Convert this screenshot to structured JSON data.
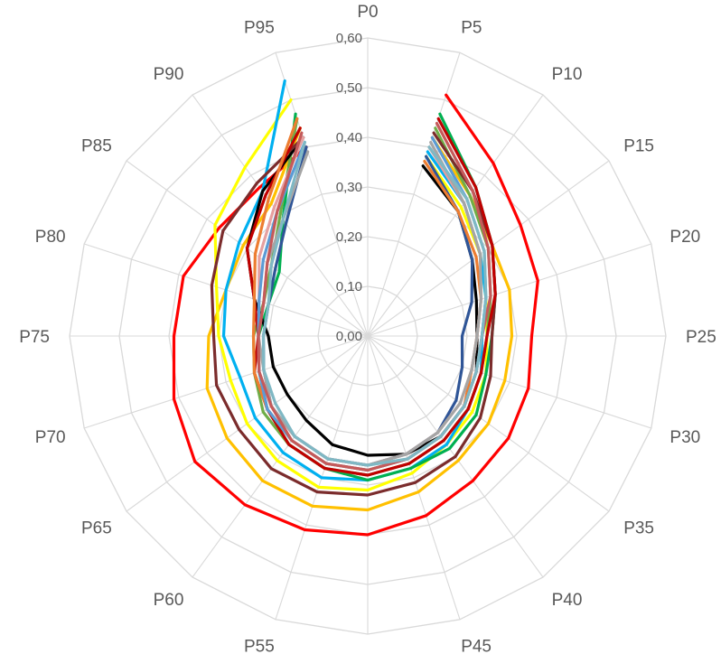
{
  "chart_data": {
    "type": "radar",
    "title": "",
    "categories": [
      "P0",
      "P5",
      "P10",
      "P15",
      "P20",
      "P25",
      "P30",
      "P35",
      "P40",
      "P45",
      "P50",
      "P55",
      "P60",
      "P65",
      "P70",
      "P75",
      "P80",
      "P85",
      "P90",
      "P95"
    ],
    "ylim": [
      0,
      0.6
    ],
    "yticks": [
      "0,00",
      "0,10",
      "0,20",
      "0,30",
      "0,40",
      "0,50",
      "0,60"
    ],
    "yticks_values": [
      0,
      0.1,
      0.2,
      0.3,
      0.4,
      0.5,
      0.6
    ],
    "grid": true,
    "legend": "none",
    "series": [
      {
        "color": "#ff0000",
        "values": [
          null,
          0.51,
          0.43,
          0.38,
          0.36,
          0.33,
          0.34,
          0.35,
          0.36,
          0.38,
          0.4,
          0.41,
          0.42,
          0.43,
          0.41,
          0.39,
          0.39,
          0.37,
          0.37,
          0.4
        ]
      },
      {
        "color": "#ffc000",
        "values": [
          null,
          0.42,
          0.35,
          0.31,
          0.3,
          0.29,
          0.29,
          0.3,
          0.31,
          0.33,
          0.35,
          0.36,
          0.36,
          0.35,
          0.34,
          0.32,
          0.3,
          0.31,
          0.33,
          0.44
        ]
      },
      {
        "color": "#ffff00",
        "values": [
          null,
          0.38,
          0.32,
          0.28,
          0.25,
          0.24,
          0.25,
          0.26,
          0.27,
          0.29,
          0.31,
          0.32,
          0.31,
          0.3,
          0.29,
          0.3,
          0.32,
          0.38,
          0.42,
          0.5
        ]
      },
      {
        "color": "#00b0f0",
        "values": [
          null,
          0.39,
          0.33,
          0.28,
          0.25,
          0.23,
          0.24,
          0.25,
          0.27,
          0.28,
          0.29,
          0.3,
          0.29,
          0.28,
          0.27,
          0.29,
          0.3,
          0.32,
          0.36,
          0.54
        ]
      },
      {
        "color": "#00b050",
        "values": [
          null,
          0.47,
          0.37,
          0.31,
          0.27,
          0.25,
          0.25,
          0.27,
          0.28,
          0.28,
          0.29,
          0.28,
          0.27,
          0.25,
          0.23,
          0.22,
          0.21,
          0.22,
          0.29,
          0.47
        ]
      },
      {
        "color": "#70ad47",
        "values": [
          null,
          0.44,
          0.35,
          0.3,
          0.26,
          0.24,
          0.24,
          0.25,
          0.26,
          0.27,
          0.28,
          0.28,
          0.27,
          0.26,
          0.24,
          0.23,
          0.22,
          0.24,
          0.3,
          0.46
        ]
      },
      {
        "color": "#000000",
        "values": [
          null,
          0.36,
          0.31,
          0.26,
          0.23,
          0.22,
          0.23,
          0.24,
          0.25,
          0.25,
          0.24,
          0.23,
          0.21,
          0.2,
          0.2,
          0.2,
          0.24,
          0.3,
          0.36,
          0.42
        ]
      },
      {
        "color": "#7b2c2c",
        "values": [
          null,
          0.43,
          0.36,
          0.31,
          0.27,
          0.25,
          0.26,
          0.28,
          0.3,
          0.31,
          0.32,
          0.33,
          0.33,
          0.32,
          0.32,
          0.31,
          0.33,
          0.36,
          0.38,
          0.42
        ]
      },
      {
        "color": "#c00000",
        "values": [
          null,
          0.46,
          0.37,
          0.31,
          0.27,
          0.24,
          0.24,
          0.25,
          0.26,
          0.27,
          0.28,
          0.28,
          0.27,
          0.25,
          0.24,
          0.22,
          0.24,
          0.3,
          0.35,
          0.44
        ]
      },
      {
        "color": "#2f5597",
        "values": [
          null,
          0.38,
          0.31,
          0.26,
          0.22,
          0.19,
          0.2,
          0.22,
          0.24,
          0.25,
          0.26,
          0.26,
          0.25,
          0.24,
          0.22,
          0.21,
          0.21,
          0.23,
          0.28,
          0.4
        ]
      },
      {
        "color": "#ed7d31",
        "values": [
          null,
          0.37,
          0.31,
          0.27,
          0.24,
          0.22,
          0.22,
          0.24,
          0.25,
          0.26,
          0.27,
          0.27,
          0.26,
          0.25,
          0.24,
          0.23,
          0.24,
          0.28,
          0.34,
          0.46
        ]
      },
      {
        "color": "#e6a0a0",
        "values": [
          null,
          0.4,
          0.33,
          0.28,
          0.24,
          0.22,
          0.22,
          0.23,
          0.24,
          0.25,
          0.26,
          0.26,
          0.25,
          0.24,
          0.23,
          0.22,
          0.23,
          0.27,
          0.32,
          0.42
        ]
      },
      {
        "color": "#5b9bd5",
        "values": [
          null,
          0.42,
          0.34,
          0.29,
          0.25,
          0.23,
          0.23,
          0.24,
          0.25,
          0.26,
          0.27,
          0.27,
          0.26,
          0.25,
          0.23,
          0.22,
          0.23,
          0.26,
          0.31,
          0.41
        ]
      },
      {
        "color": "#a5a5a5",
        "values": [
          null,
          0.41,
          0.33,
          0.28,
          0.24,
          0.22,
          0.22,
          0.23,
          0.24,
          0.25,
          0.26,
          0.26,
          0.25,
          0.24,
          0.22,
          0.22,
          0.22,
          0.25,
          0.29,
          0.39
        ]
      },
      {
        "color": "#c55a5a",
        "values": [
          null,
          0.45,
          0.36,
          0.3,
          0.26,
          0.23,
          0.23,
          0.24,
          0.25,
          0.26,
          0.27,
          0.27,
          0.26,
          0.24,
          0.23,
          0.22,
          0.22,
          0.25,
          0.31,
          0.43
        ]
      },
      {
        "color": "#7fb8c4",
        "values": [
          null,
          0.4,
          0.34,
          0.29,
          0.25,
          0.23,
          0.23,
          0.24,
          0.25,
          0.26,
          0.26,
          0.26,
          0.25,
          0.23,
          0.22,
          0.21,
          0.21,
          0.24,
          0.29,
          0.41
        ]
      }
    ]
  }
}
